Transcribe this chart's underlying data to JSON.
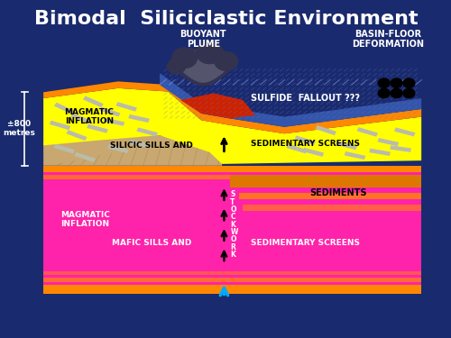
{
  "title": "Bimodal  Siliciclastic Environment",
  "title_color": "white",
  "title_fontsize": 16,
  "bg_color": "#1a2a6e",
  "labels": {
    "buoyant_plume": "BUOYANT\nPLUME",
    "basin_floor": "BASIN-FLOOR\nDEFORMATION",
    "sulfide_fallout": "SULFIDE  FALLOUT ???",
    "silicic_sills": "SILICIC SILLS AND",
    "sedimentary_screens_top": "SEDIMENTARY SCREENS",
    "magmatic_inflation_top": "MAGMATIC\nINFLATION",
    "magmatic_inflation_bot": "MAGMATIC\nINFLATION",
    "mafic_sills": "MAFIC SILLS AND",
    "sedimentary_screens_bot": "SEDIMENTARY SCREENS",
    "sediments": "SEDIMENTS",
    "stockwork": "S\nT\nO\nC\nK\nW\nO\nR\nK",
    "scale": "±800\nmetres"
  },
  "colors": {
    "yellow_layer": "#FFFF00",
    "orange_border": "#FF8800",
    "orange_dark": "#CC5500",
    "pink_layer": "#FF22AA",
    "red_zone": "#CC2200",
    "blue_pattern": "#3355AA",
    "gray_plume_dark": "#333350",
    "gray_plume_light": "#888899",
    "tan_wedge": "#C8A870",
    "orange_sediment": "#DD7700",
    "white": "#FFFFFF",
    "black": "#000000",
    "cyan_arrow": "#00AAFF",
    "sill_gray": "#BBBBAA",
    "deep_navy": "#1a2a6e"
  }
}
